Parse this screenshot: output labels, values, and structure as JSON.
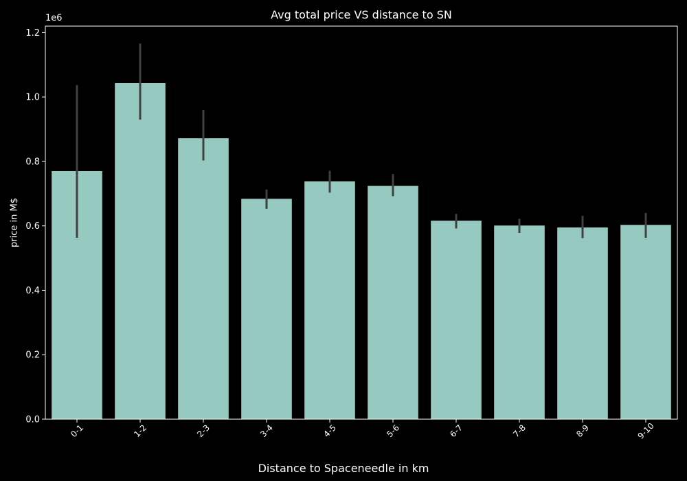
{
  "chart_data": {
    "type": "bar",
    "title": "Avg total price VS distance to SN",
    "xlabel": "Distance to Spaceneedle in km",
    "ylabel": "price in M$",
    "y_offset_label": "1e6",
    "categories": [
      "0-1",
      "1-2",
      "2-3",
      "3-4",
      "4-5",
      "5-6",
      "6-7",
      "7-8",
      "8-9",
      "9-10"
    ],
    "values": [
      770000,
      1043000,
      872000,
      684000,
      738000,
      724000,
      616000,
      601000,
      595000,
      603000
    ],
    "error_low": [
      563000,
      930000,
      803000,
      653000,
      703000,
      692000,
      592000,
      578000,
      562000,
      563000
    ],
    "error_high": [
      1037000,
      1166000,
      960000,
      713000,
      771000,
      761000,
      637000,
      622000,
      631000,
      640000
    ],
    "ylim": [
      0,
      1220000
    ],
    "y_ticks": [
      0,
      200000,
      400000,
      600000,
      800000,
      1000000,
      1200000
    ],
    "y_tick_labels": [
      "0.0",
      "0.2",
      "0.4",
      "0.6",
      "0.8",
      "1.0",
      "1.2"
    ],
    "grid": false,
    "colors": {
      "background": "#000000",
      "bar": "#96cac1",
      "error": "#404040",
      "axis": "#ffffff",
      "text": "#ffffff"
    }
  }
}
